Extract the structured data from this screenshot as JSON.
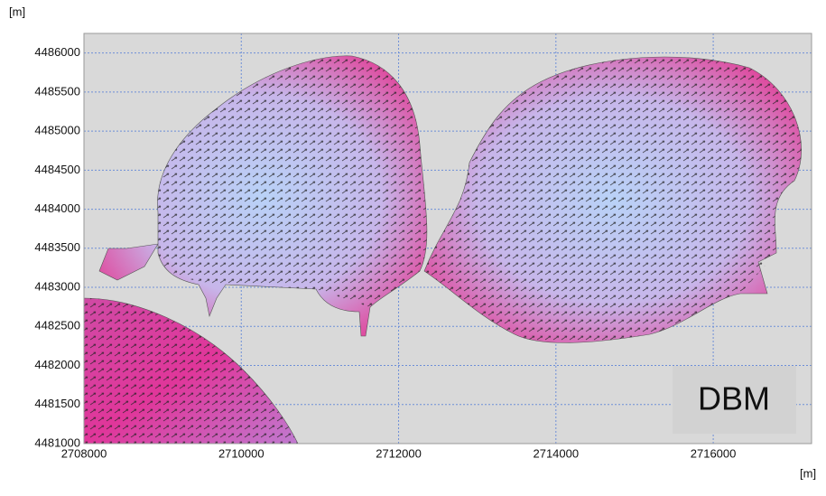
{
  "chart_data": {
    "type": "vector-field",
    "y_label": "[m]",
    "x_label": "[m]",
    "annotation": "DBM",
    "xlim": [
      2708000,
      2717250
    ],
    "ylim": [
      4481000,
      4486250
    ],
    "xticks": [
      2708000,
      2710000,
      2712000,
      2714000,
      2716000
    ],
    "yticks": [
      4481000,
      4481500,
      4482000,
      4482500,
      4483000,
      4483500,
      4484000,
      4484500,
      4485000,
      4485500,
      4486000
    ],
    "grid": true
  }
}
